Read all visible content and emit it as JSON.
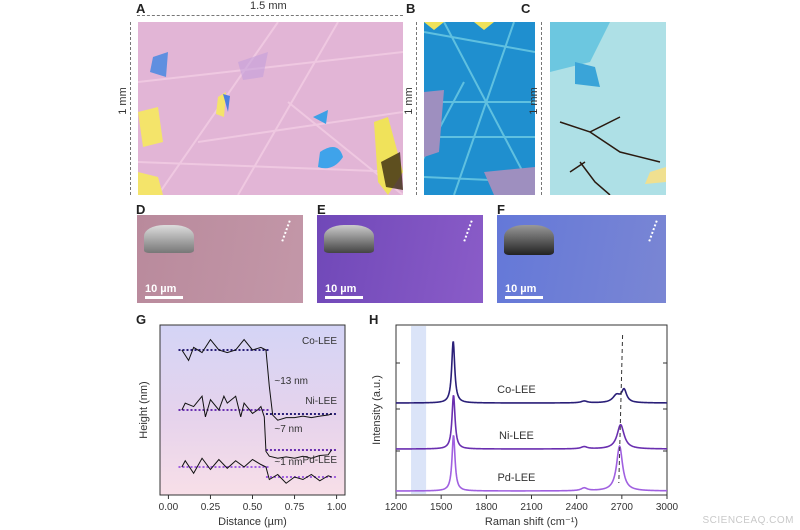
{
  "panels": {
    "A": {
      "label": "A",
      "width_label": "1.5 mm",
      "height_label": "1 mm"
    },
    "B": {
      "label": "B",
      "height_label": "1 mm"
    },
    "C": {
      "label": "C",
      "height_label": "1 mm"
    },
    "D": {
      "label": "D",
      "scale_bar": "10 µm"
    },
    "E": {
      "label": "E",
      "scale_bar": "10 µm"
    },
    "F": {
      "label": "F",
      "scale_bar": "10 µm"
    },
    "G": {
      "label": "G"
    },
    "H": {
      "label": "H"
    }
  },
  "colors": {
    "A_bg": "#e2b5d6",
    "B_bg": "#1f8fcf",
    "C_bg": "#aee0e6",
    "D_bg": "#b98a9c",
    "E_bg": "#7b4fc0",
    "F_bg": "#6d7fd6",
    "co": "#2a1f78",
    "ni": "#6a2fb0",
    "pd": "#a060e0"
  },
  "chart_data": [
    {
      "type": "line",
      "panel": "G",
      "xlabel": "Distance (µm)",
      "ylabel": "Height (nm)",
      "xlim": [
        -0.05,
        1.05
      ],
      "xticks": [
        "0.00",
        "0.25",
        "0.50",
        "0.75",
        "1.00"
      ],
      "grid": false,
      "series": [
        {
          "name": "Co-LEE",
          "annotation": "~13 nm",
          "x": [
            0.08,
            0.12,
            0.15,
            0.2,
            0.25,
            0.3,
            0.35,
            0.4,
            0.45,
            0.5,
            0.55,
            0.58,
            0.6,
            0.62,
            0.65,
            0.7,
            0.75,
            0.8,
            0.85,
            0.9,
            0.95,
            0.97
          ],
          "y": [
            13,
            11,
            13.5,
            12.5,
            15,
            13,
            12.5,
            13,
            15,
            13,
            13.5,
            13,
            6,
            0.5,
            -0.5,
            0,
            0,
            0.3,
            0,
            0.3,
            0.5,
            0.7
          ]
        },
        {
          "name": "Ni-LEE",
          "annotation": "~7 nm",
          "x": [
            0.08,
            0.1,
            0.15,
            0.2,
            0.22,
            0.25,
            0.3,
            0.33,
            0.35,
            0.4,
            0.43,
            0.45,
            0.5,
            0.53,
            0.55,
            0.57,
            0.58,
            0.6,
            0.65,
            0.7,
            0.75,
            0.8,
            0.85,
            0.9,
            0.95,
            0.97
          ],
          "y": [
            7,
            8,
            7.5,
            9,
            6,
            8.5,
            7,
            9,
            8,
            9,
            6,
            8,
            6.5,
            7,
            7.5,
            6,
            1,
            0.3,
            0,
            0.2,
            0,
            0.3,
            0,
            0.4,
            0.5,
            1.2
          ]
        },
        {
          "name": "Pd-LEE",
          "annotation": "~1 nm",
          "x": [
            0.08,
            0.1,
            0.15,
            0.2,
            0.25,
            0.3,
            0.35,
            0.4,
            0.45,
            0.5,
            0.55,
            0.58,
            0.6,
            0.65,
            0.7,
            0.75,
            0.8,
            0.85,
            0.9,
            0.95,
            0.97
          ],
          "y": [
            1,
            1.5,
            0.5,
            1.7,
            0.8,
            1.6,
            0.9,
            1.5,
            1,
            1.6,
            1.2,
            1,
            0,
            0.4,
            -0.3,
            0.2,
            0,
            0.4,
            -0.1,
            0.3,
            0.2
          ]
        }
      ]
    },
    {
      "type": "line",
      "panel": "H",
      "xlabel": "Raman shift (cm⁻¹)",
      "ylabel": "Intensity (a.u.)",
      "xlim": [
        1200,
        3000
      ],
      "xticks": [
        "1200",
        "1500",
        "1800",
        "2100",
        "2400",
        "2700",
        "3000"
      ],
      "shaded_band": [
        1300,
        1400
      ],
      "grid": false,
      "series": [
        {
          "name": "Co-LEE",
          "peaks": [
            {
              "x": 1580,
              "h": 1.0,
              "w": 12
            },
            {
              "x": 2450,
              "h": 0.03,
              "w": 25
            },
            {
              "x": 2665,
              "h": 0.12,
              "w": 30
            },
            {
              "x": 2715,
              "h": 0.2,
              "w": 20
            }
          ]
        },
        {
          "name": "Ni-LEE",
          "peaks": [
            {
              "x": 1582,
              "h": 1.0,
              "w": 12
            },
            {
              "x": 2450,
              "h": 0.04,
              "w": 25
            },
            {
              "x": 2692,
              "h": 0.45,
              "w": 28
            }
          ]
        },
        {
          "name": "Pd-LEE",
          "peaks": [
            {
              "x": 1582,
              "h": 1.0,
              "w": 12
            },
            {
              "x": 2450,
              "h": 0.05,
              "w": 25
            },
            {
              "x": 2685,
              "h": 0.8,
              "w": 24
            }
          ]
        }
      ],
      "peak_guide_line": [
        2680,
        2705
      ]
    }
  ],
  "watermark": "SCIENCEAQ.COM"
}
